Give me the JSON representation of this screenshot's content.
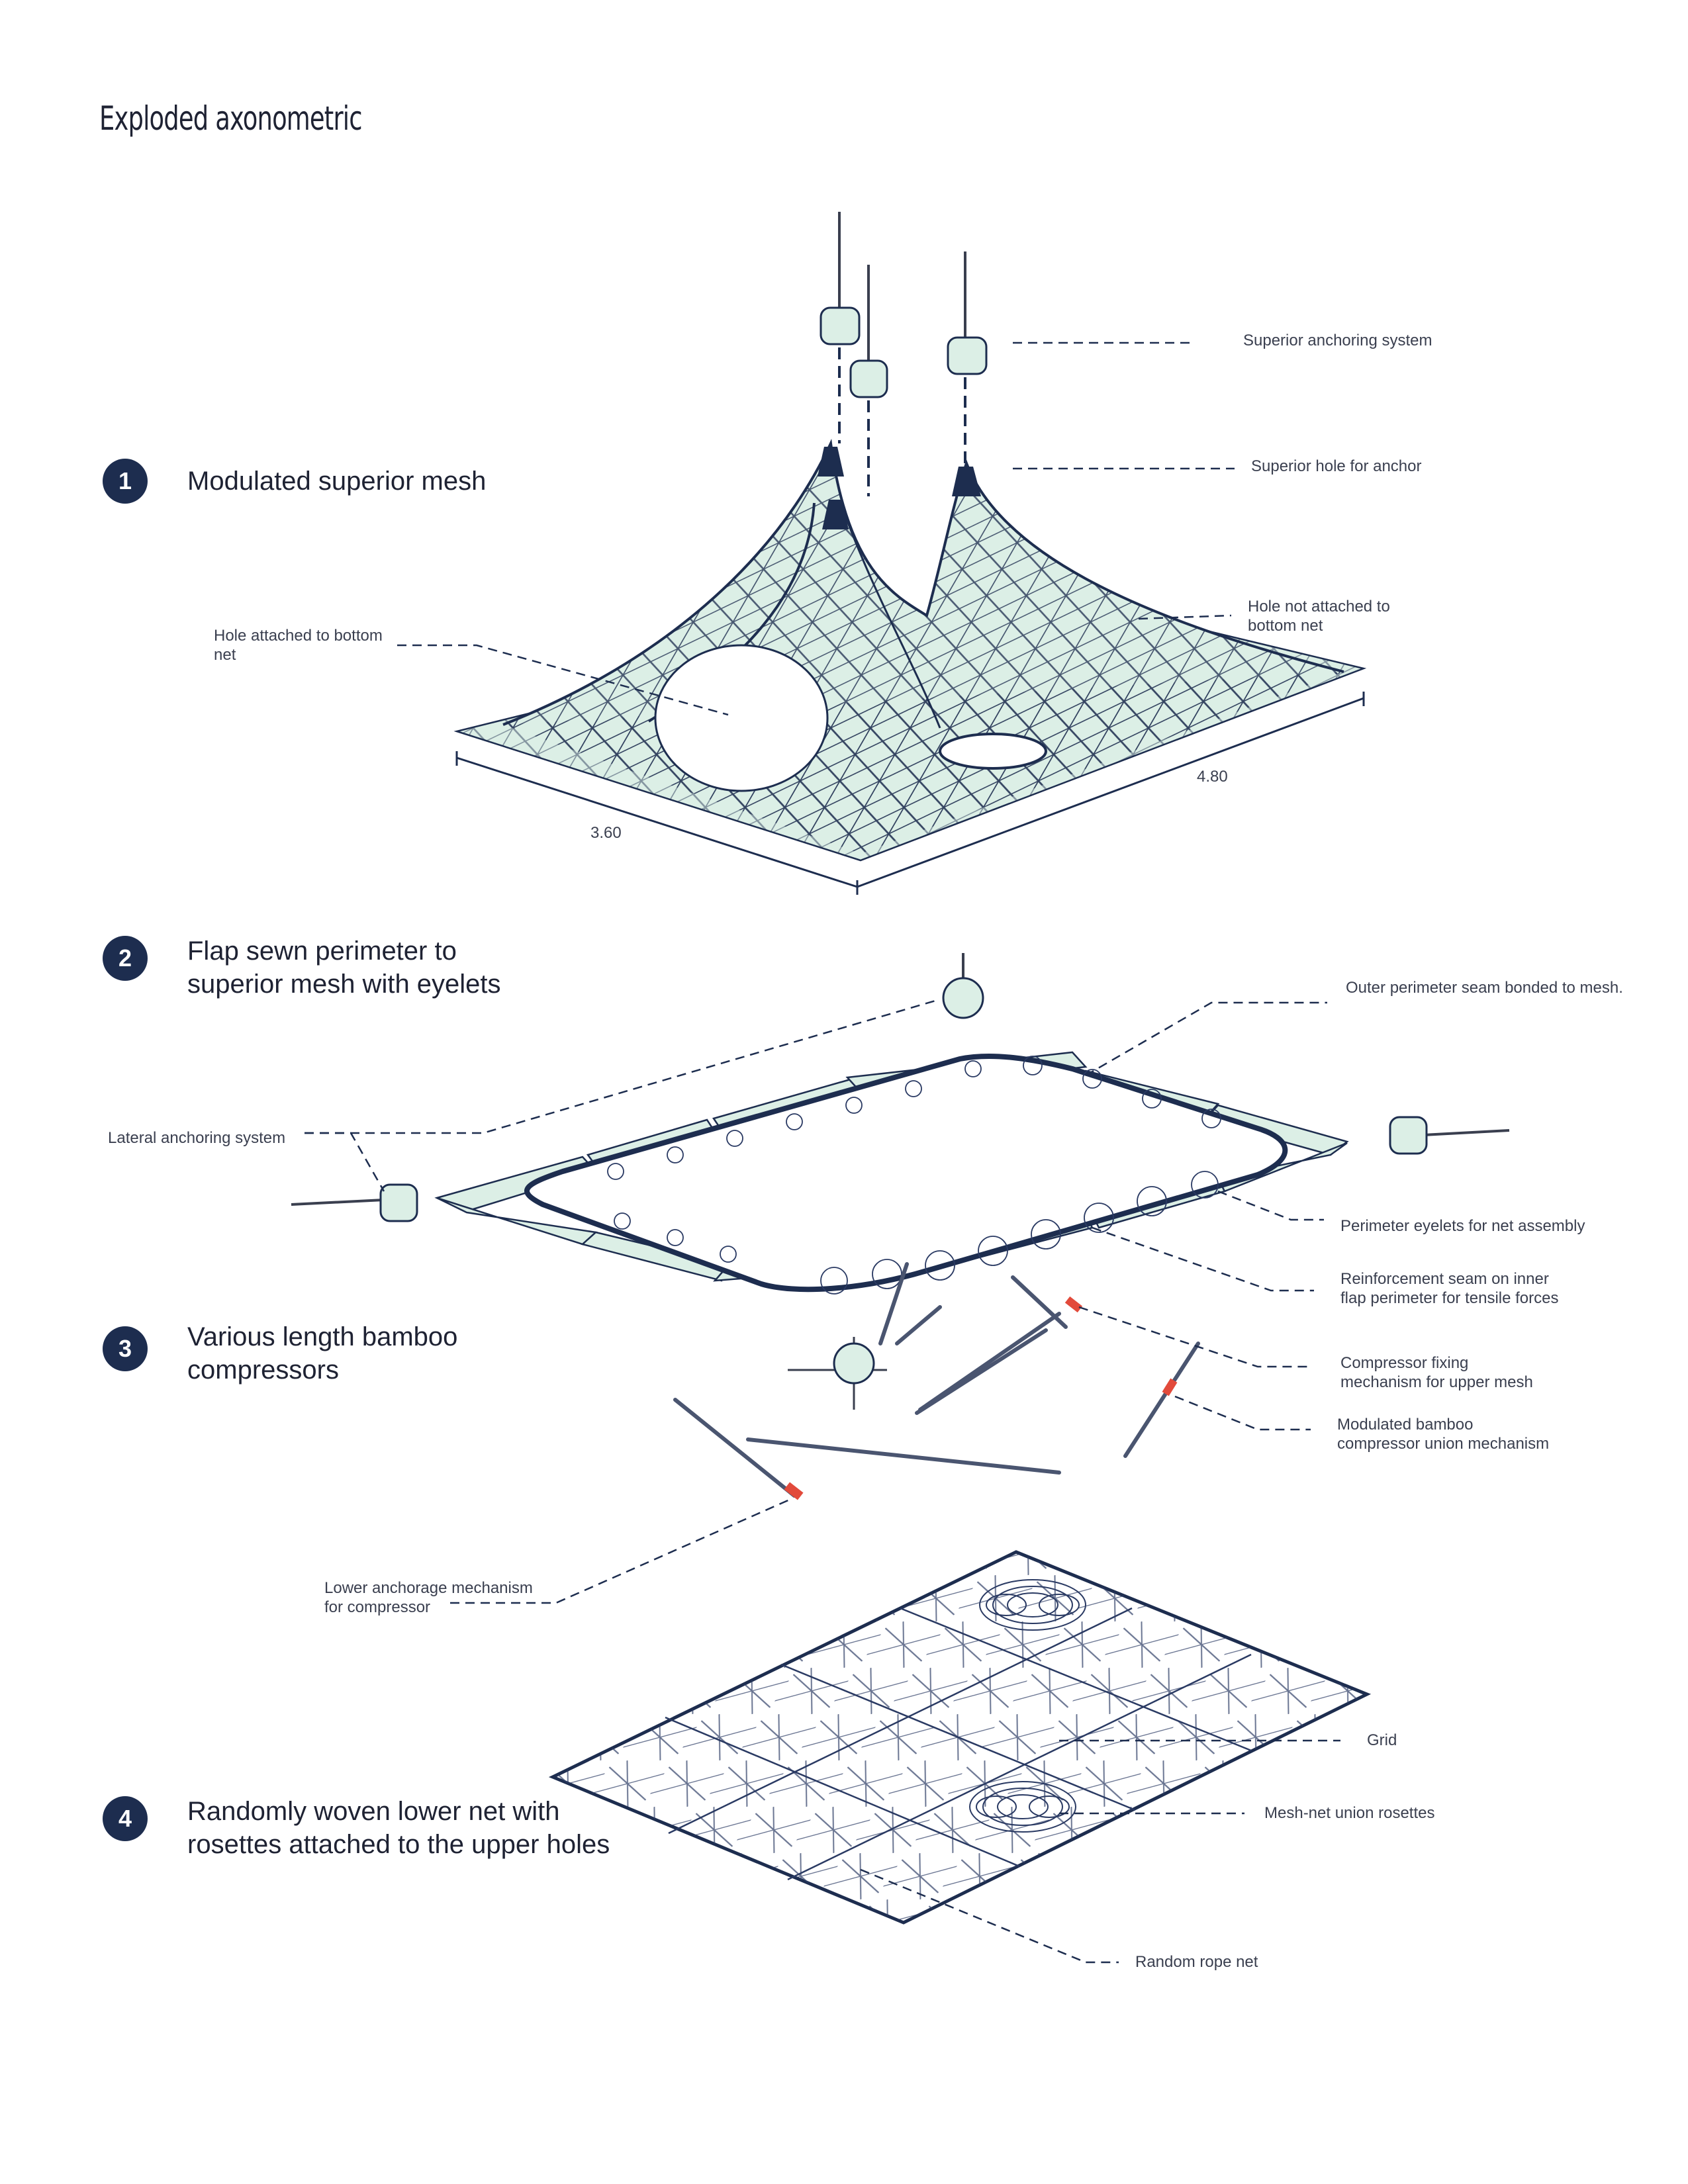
{
  "title": "Exploded axonometric",
  "steps": [
    {
      "number": "1",
      "label": "Modulated superior mesh"
    },
    {
      "number": "2",
      "label": "Flap sewn perimeter to\nsuperior mesh with eyelets"
    },
    {
      "number": "3",
      "label": "Various length bamboo\ncompressors"
    },
    {
      "number": "4",
      "label": "Randomly woven lower net with\nrosettes attached to the upper holes"
    }
  ],
  "annotations": {
    "superior_anchoring": "Superior anchoring system",
    "superior_hole": "Superior hole for anchor",
    "hole_not_attached": "Hole not attached to\nbottom net",
    "hole_attached": "Hole attached to bottom\nnet",
    "outer_perimeter_seam": "Outer perimeter seam bonded to mesh.",
    "lateral_anchoring": "Lateral anchoring system",
    "perimeter_eyelets": "Perimeter eyelets for net assembly",
    "reinforcement_seam": "Reinforcement seam on inner\nflap perimeter for tensile forces",
    "compressor_fixing": "Compressor fixing\nmechanism for upper mesh",
    "bamboo_union": "Modulated bamboo\ncompressor union mechanism",
    "lower_anchorage": "Lower anchorage mechanism\nfor compressor",
    "grid": "Grid",
    "mesh_net_rosettes": "Mesh-net union rosettes",
    "random_rope_net": "Random rope net"
  },
  "dimensions": {
    "width": "4.80",
    "depth": "3.60"
  },
  "colors": {
    "navy": "#1d2d4f",
    "mint": "#dcefe6",
    "red": "#e24a3b",
    "text": "#3a3f4f"
  }
}
